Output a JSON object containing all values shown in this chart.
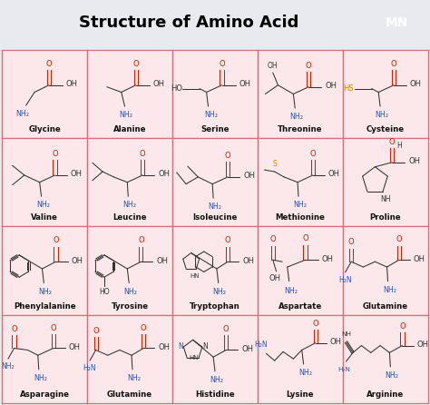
{
  "title": "Structure of Amino Acid",
  "title_fontsize": 13,
  "title_fontweight": "bold",
  "background_color": "#e8eaf0",
  "cell_bg_color": "#fce8ea",
  "grid_color": "#d4707a",
  "mn_box_color": "#111111",
  "mn_text_color": "#ffffff",
  "name_fontsize": 6.2,
  "name_fontweight": "bold",
  "amino_names": [
    "Glycine",
    "Alanine",
    "Serine",
    "Threonine",
    "Cysteine",
    "Valine",
    "Leucine",
    "Isoleucine",
    "Methionine",
    "Proline",
    "Phenylalanine",
    "Tyrosine",
    "Tryptophan",
    "Aspartate",
    "Glutamine",
    "Asparagine",
    "Glutamine",
    "Histidine",
    "Lysine",
    "Arginine"
  ],
  "bond_color": "#333333",
  "red_color": "#cc2200",
  "blue_color": "#2255bb",
  "gold_color": "#cc8800"
}
